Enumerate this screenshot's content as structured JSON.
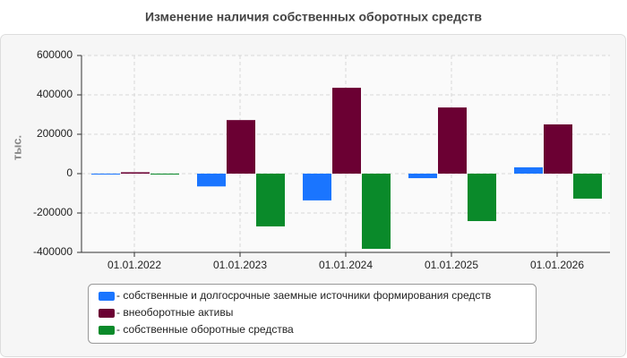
{
  "chart_data": {
    "type": "bar",
    "title": "Изменение наличия собственных оборотных средств",
    "y_label": "тыс.",
    "categories": [
      "01.01.2022",
      "01.01.2023",
      "01.01.2024",
      "01.01.2025",
      "01.01.2026"
    ],
    "series": [
      {
        "name": "- собственные и долгосрочные заемные источники формирования средств",
        "color": "#1a75ff",
        "values": [
          -3000,
          -65000,
          -136000,
          -23000,
          32000
        ]
      },
      {
        "name": "- внеоборотные активы",
        "color": "#6b0033",
        "values": [
          7000,
          272000,
          436000,
          336000,
          250000
        ]
      },
      {
        "name": "- собственные оборотные средства",
        "color": "#0a8a2a",
        "values": [
          -4000,
          -268000,
          -382000,
          -241000,
          -127000
        ]
      }
    ],
    "ylim": [
      -400000,
      600000
    ],
    "yticks": [
      -400000,
      -200000,
      0,
      200000,
      400000,
      600000
    ],
    "grid": true
  }
}
